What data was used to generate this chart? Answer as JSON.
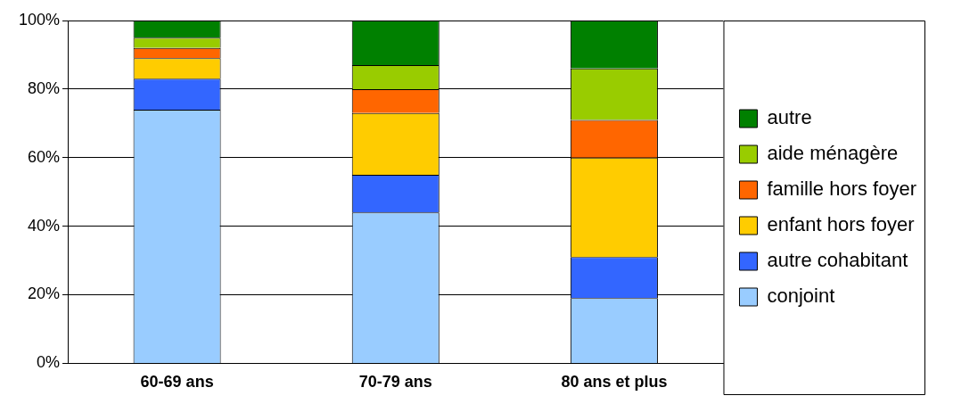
{
  "chart_data": {
    "type": "bar",
    "stacked": true,
    "categories": [
      "60-69 ans",
      "70-79 ans",
      "80 ans et plus"
    ],
    "series": [
      {
        "name": "conjoint",
        "color": "#99ccff",
        "values": [
          74,
          44,
          19
        ]
      },
      {
        "name": "autre cohabitant",
        "color": "#3366ff",
        "values": [
          9,
          11,
          12
        ]
      },
      {
        "name": "enfant hors foyer",
        "color": "#ffcc00",
        "values": [
          6,
          18,
          29
        ]
      },
      {
        "name": "famille hors foyer",
        "color": "#ff6600",
        "values": [
          3,
          7,
          11
        ]
      },
      {
        "name": "aide ménagère",
        "color": "#99cc00",
        "values": [
          3,
          7,
          15
        ]
      },
      {
        "name": "autre",
        "color": "#008000",
        "values": [
          5,
          13,
          14
        ]
      }
    ],
    "ylim": [
      0,
      100
    ],
    "yticks": [
      {
        "value": 0,
        "label": "0%"
      },
      {
        "value": 20,
        "label": "20%"
      },
      {
        "value": 40,
        "label": "40%"
      },
      {
        "value": 60,
        "label": "60%"
      },
      {
        "value": 80,
        "label": "80%"
      },
      {
        "value": 100,
        "label": "100%"
      }
    ],
    "grid": "y",
    "legend": "right"
  }
}
